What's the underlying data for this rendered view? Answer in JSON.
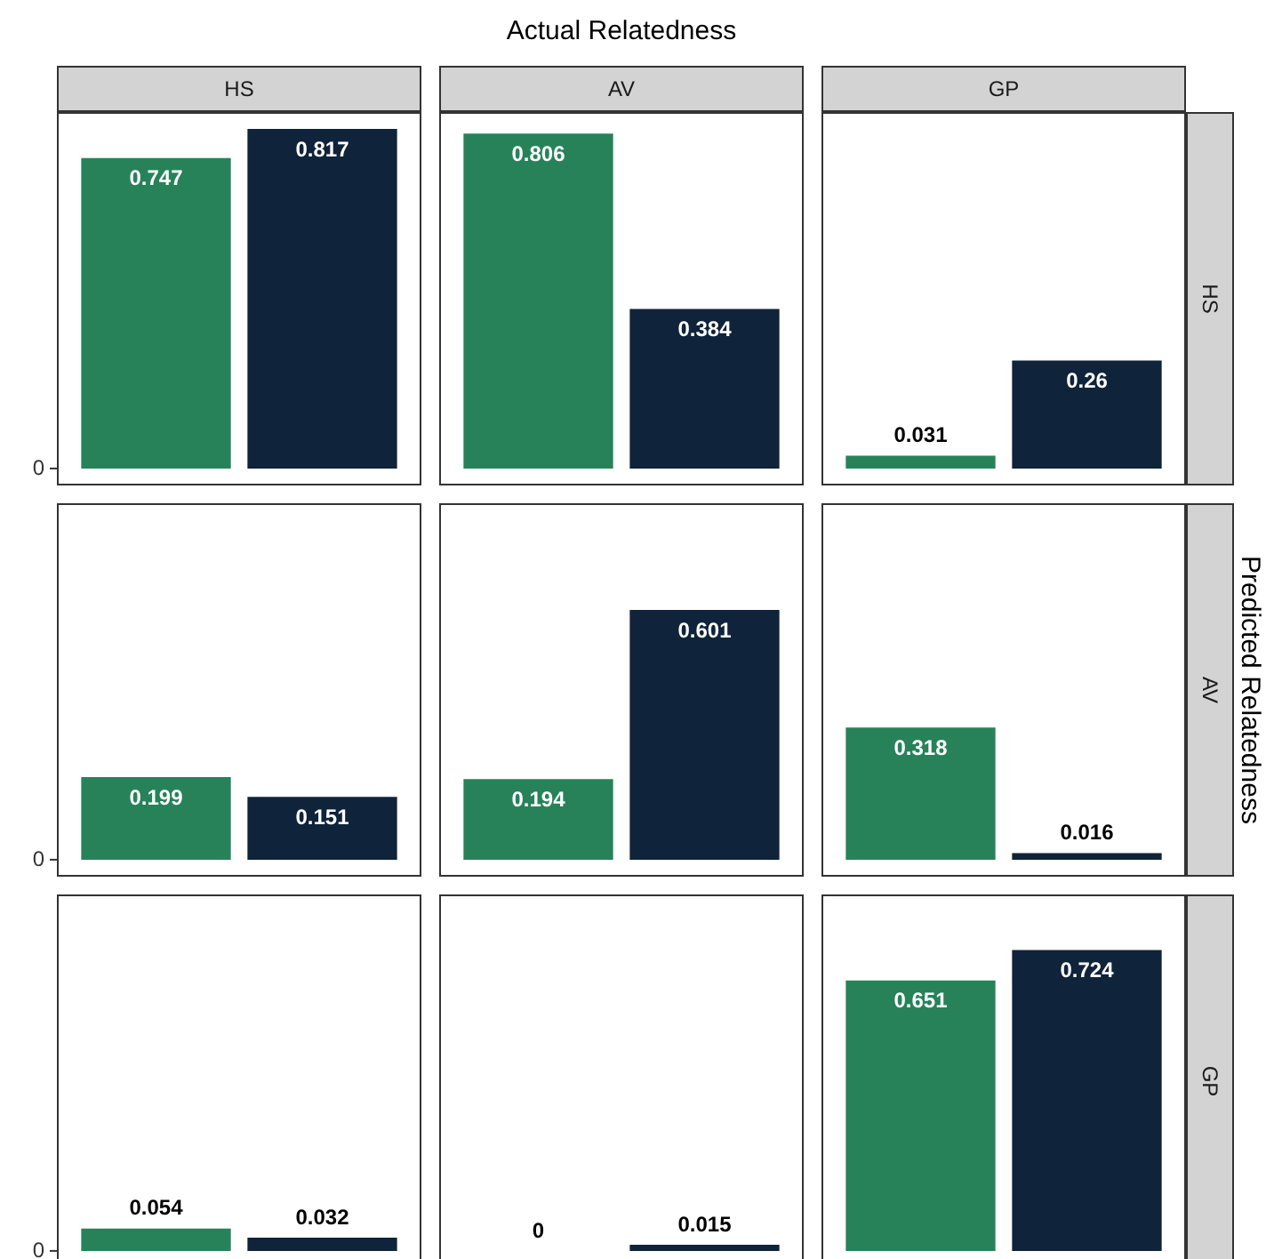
{
  "chart_data": [
    {
      "type": "bar",
      "subtitle": "HS",
      "categories": [
        null,
        null
      ],
      "values": [
        0.747,
        0.817
      ],
      "colors": [
        "#27825a",
        "#0f233a"
      ],
      "data_labels": true,
      "tick_labels": false,
      "annotations": [
        "0"
      ]
    },
    {
      "type": "bar",
      "title": "Actual Relatedness",
      "subtitle": "AV",
      "categories": [
        null,
        null
      ],
      "values": [
        0.806,
        0.384
      ],
      "colors": [
        "#27825a",
        "#0f233a"
      ],
      "data_labels": true,
      "tick_labels": false
    },
    {
      "type": "bar",
      "subtitle": "GP",
      "y2label": "HS",
      "categories": [
        null,
        null
      ],
      "values": [
        0.031,
        0.26
      ],
      "colors": [
        "#27825a",
        "#0f233a"
      ],
      "data_labels": true,
      "tick_labels": false
    },
    {
      "type": "bar",
      "categories": [
        null,
        null
      ],
      "values": [
        0.199,
        0.151
      ],
      "colors": [
        "#27825a",
        "#0f233a"
      ],
      "data_labels": true,
      "tick_labels": false,
      "annotations": [
        "0"
      ]
    },
    {
      "type": "bar",
      "categories": [
        null,
        null
      ],
      "values": [
        0.194,
        0.601
      ],
      "colors": [
        "#27825a",
        "#0f233a"
      ],
      "data_labels": true,
      "tick_labels": false
    },
    {
      "type": "bar",
      "y2label": "AV",
      "ylabel": "Predicted Relatedness",
      "categories": [
        null,
        null
      ],
      "values": [
        0.318,
        0.016
      ],
      "colors": [
        "#27825a",
        "#0f233a"
      ],
      "data_labels": true,
      "tick_labels": false
    },
    {
      "type": "bar",
      "categories": [
        null,
        null
      ],
      "values": [
        0.054,
        0.032
      ],
      "colors": [
        "#27825a",
        "#0f233a"
      ],
      "data_labels": true,
      "tick_labels": false,
      "annotations": [
        "0"
      ]
    },
    {
      "type": "bar",
      "categories": [
        null,
        null
      ],
      "values": [
        0,
        0.015
      ],
      "colors": [
        "#27825a",
        "#0f233a"
      ],
      "data_labels": true,
      "tick_labels": false
    },
    {
      "type": "bar",
      "y2label": "GP",
      "categories": [
        null,
        null
      ],
      "values": [
        0.651,
        0.724
      ],
      "colors": [
        "#27825a",
        "#0f233a"
      ],
      "data_labels": true,
      "tick_labels": false
    }
  ]
}
